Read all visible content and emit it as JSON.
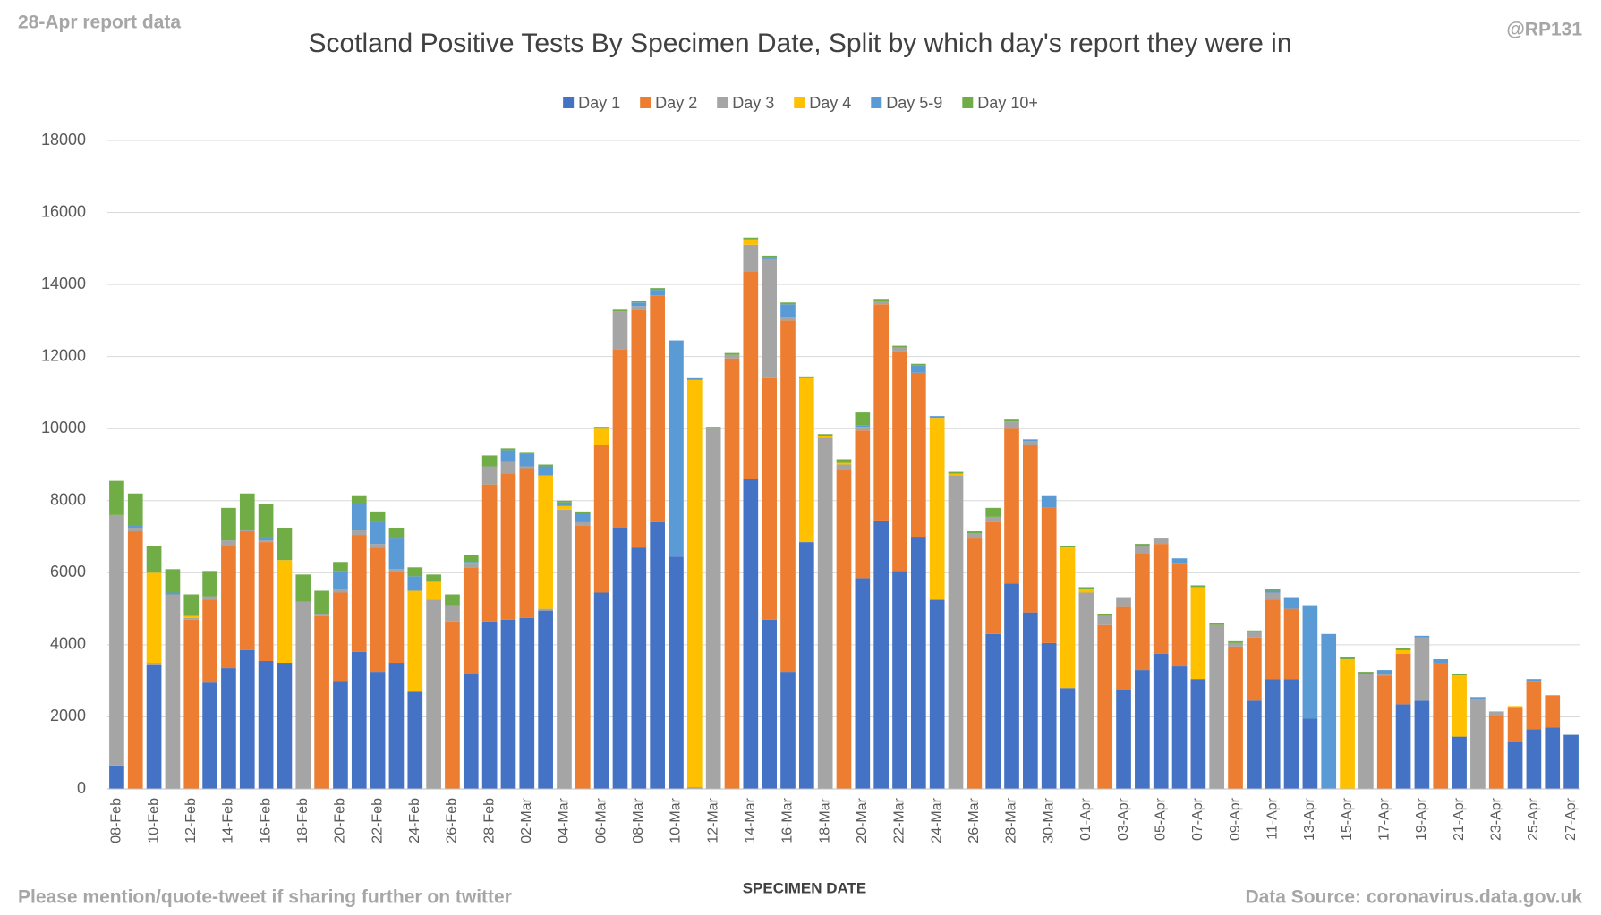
{
  "chart_data": {
    "type": "stacked_bar",
    "title": "Scotland Positive Tests By Specimen Date, Split by which day's report they were in",
    "note": "28-Apr report data",
    "credit": "@RP131",
    "footer": "Please mention/quote-tweet if sharing further on twitter",
    "source": "Data Source: coronavirus.data.gov.uk",
    "x_label": "SPECIMEN DATE",
    "grid": true,
    "legend": "top",
    "ylim": [
      0,
      18000
    ],
    "yticks": [
      0,
      2000,
      4000,
      6000,
      8000,
      10000,
      12000,
      14000,
      16000,
      18000
    ],
    "categories": [
      "08-Feb",
      null,
      "10-Feb",
      null,
      "12-Feb",
      null,
      "14-Feb",
      null,
      "16-Feb",
      null,
      "18-Feb",
      null,
      "20-Feb",
      null,
      "22-Feb",
      null,
      "24-Feb",
      null,
      "26-Feb",
      null,
      "28-Feb",
      null,
      "02-Mar",
      null,
      "04-Mar",
      null,
      "06-Mar",
      null,
      "08-Mar",
      null,
      "10-Mar",
      null,
      "12-Mar",
      null,
      "14-Mar",
      null,
      "16-Mar",
      null,
      "18-Mar",
      null,
      "20-Mar",
      null,
      "22-Mar",
      null,
      "24-Mar",
      null,
      "26-Mar",
      null,
      "28-Mar",
      null,
      "30-Mar",
      null,
      "01-Apr",
      null,
      "03-Apr",
      null,
      "05-Apr",
      null,
      "07-Apr",
      null,
      "09-Apr",
      null,
      "11-Apr",
      null,
      "13-Apr",
      null,
      "15-Apr",
      null,
      "17-Apr",
      null,
      "19-Apr",
      null,
      "21-Apr",
      null,
      "23-Apr",
      null,
      "25-Apr",
      null,
      "27-Apr"
    ],
    "series": [
      {
        "name": "Day 1",
        "color": "#4472c4",
        "values": [
          650,
          0,
          3450,
          0,
          0,
          2950,
          3350,
          3850,
          3550,
          3500,
          0,
          0,
          3000,
          3800,
          3250,
          3500,
          2700,
          0,
          0,
          3200,
          4650,
          4700,
          4750,
          4950,
          0,
          0,
          5450,
          7250,
          6700,
          7400,
          6450,
          0,
          0,
          0,
          8600,
          4700,
          3250,
          6850,
          0,
          0,
          5850,
          7450,
          6050,
          7000,
          5250,
          0,
          0,
          4300,
          5700,
          4900,
          4050,
          2800,
          0,
          0,
          2750,
          3300,
          3750,
          3400,
          3050,
          0,
          0,
          2450,
          3050,
          3050,
          1950,
          0,
          0,
          0,
          0,
          2350,
          2450,
          0,
          1450,
          0,
          0,
          1300,
          1650,
          1700,
          1500
        ]
      },
      {
        "name": "Day 2",
        "color": "#ed7d31",
        "values": [
          0,
          7150,
          0,
          0,
          4700,
          2300,
          3400,
          3300,
          3300,
          0,
          0,
          4800,
          2450,
          3250,
          3450,
          2550,
          0,
          0,
          4650,
          2950,
          3800,
          4050,
          4150,
          0,
          0,
          7300,
          4100,
          4950,
          6600,
          6300,
          0,
          0,
          0,
          11950,
          5750,
          6700,
          9750,
          0,
          0,
          8850,
          4100,
          6000,
          6100,
          4550,
          0,
          0,
          6950,
          3100,
          4300,
          4650,
          3750,
          0,
          0,
          4550,
          2300,
          3250,
          3050,
          2850,
          0,
          0,
          3950,
          1750,
          2200,
          1950,
          0,
          0,
          0,
          0,
          3150,
          1400,
          0,
          3500,
          0,
          0,
          2050,
          950,
          1350,
          900,
          0
        ]
      },
      {
        "name": "Day 3",
        "color": "#a5a5a5",
        "values": [
          6950,
          100,
          50,
          5400,
          50,
          100,
          150,
          50,
          50,
          0,
          5200,
          50,
          100,
          150,
          100,
          50,
          0,
          5250,
          450,
          100,
          500,
          350,
          50,
          50,
          7750,
          100,
          0,
          1050,
          100,
          0,
          0,
          50,
          10000,
          100,
          750,
          3300,
          100,
          0,
          9750,
          150,
          100,
          100,
          100,
          0,
          0,
          8700,
          150,
          150,
          200,
          100,
          0,
          0,
          5450,
          250,
          250,
          200,
          150,
          0,
          0,
          4550,
          100,
          150,
          200,
          0,
          0,
          0,
          0,
          3200,
          50,
          0,
          1750,
          0,
          0,
          2500,
          100,
          0,
          0,
          0,
          0
        ]
      },
      {
        "name": "Day 4",
        "color": "#ffc000",
        "values": [
          0,
          0,
          2500,
          0,
          50,
          0,
          0,
          0,
          0,
          2850,
          0,
          0,
          0,
          0,
          0,
          0,
          2800,
          500,
          0,
          0,
          0,
          0,
          0,
          3700,
          100,
          0,
          450,
          0,
          0,
          0,
          0,
          11300,
          0,
          0,
          150,
          0,
          0,
          4550,
          50,
          50,
          0,
          0,
          0,
          0,
          5050,
          50,
          0,
          0,
          0,
          0,
          0,
          3900,
          100,
          0,
          0,
          0,
          0,
          0,
          2550,
          0,
          0,
          0,
          0,
          0,
          0,
          0,
          3600,
          0,
          0,
          100,
          0,
          0,
          1700,
          0,
          0,
          50,
          0,
          0,
          0
        ]
      },
      {
        "name": "Day 5-9",
        "color": "#5b9bd5",
        "values": [
          0,
          50,
          0,
          50,
          0,
          0,
          0,
          0,
          100,
          0,
          0,
          0,
          500,
          700,
          600,
          850,
          400,
          0,
          0,
          50,
          0,
          300,
          350,
          250,
          100,
          250,
          0,
          0,
          100,
          150,
          6000,
          50,
          0,
          0,
          0,
          50,
          350,
          0,
          0,
          0,
          50,
          0,
          0,
          200,
          50,
          0,
          0,
          0,
          0,
          50,
          350,
          0,
          0,
          0,
          0,
          0,
          0,
          150,
          0,
          0,
          0,
          0,
          50,
          300,
          3150,
          4300,
          0,
          0,
          100,
          0,
          50,
          100,
          0,
          50,
          0,
          0,
          50,
          0,
          0
        ]
      },
      {
        "name": "Day 10+",
        "color": "#70ad47",
        "values": [
          950,
          900,
          750,
          650,
          600,
          700,
          900,
          1000,
          900,
          900,
          750,
          650,
          250,
          250,
          300,
          300,
          250,
          200,
          300,
          200,
          300,
          50,
          50,
          50,
          50,
          50,
          50,
          50,
          50,
          50,
          0,
          0,
          50,
          50,
          50,
          50,
          50,
          50,
          50,
          100,
          350,
          50,
          50,
          50,
          0,
          50,
          50,
          250,
          50,
          0,
          0,
          50,
          50,
          50,
          0,
          50,
          0,
          0,
          50,
          50,
          50,
          50,
          50,
          0,
          0,
          0,
          50,
          50,
          0,
          50,
          0,
          0,
          50,
          0,
          0,
          0,
          0,
          0,
          0
        ]
      }
    ]
  }
}
